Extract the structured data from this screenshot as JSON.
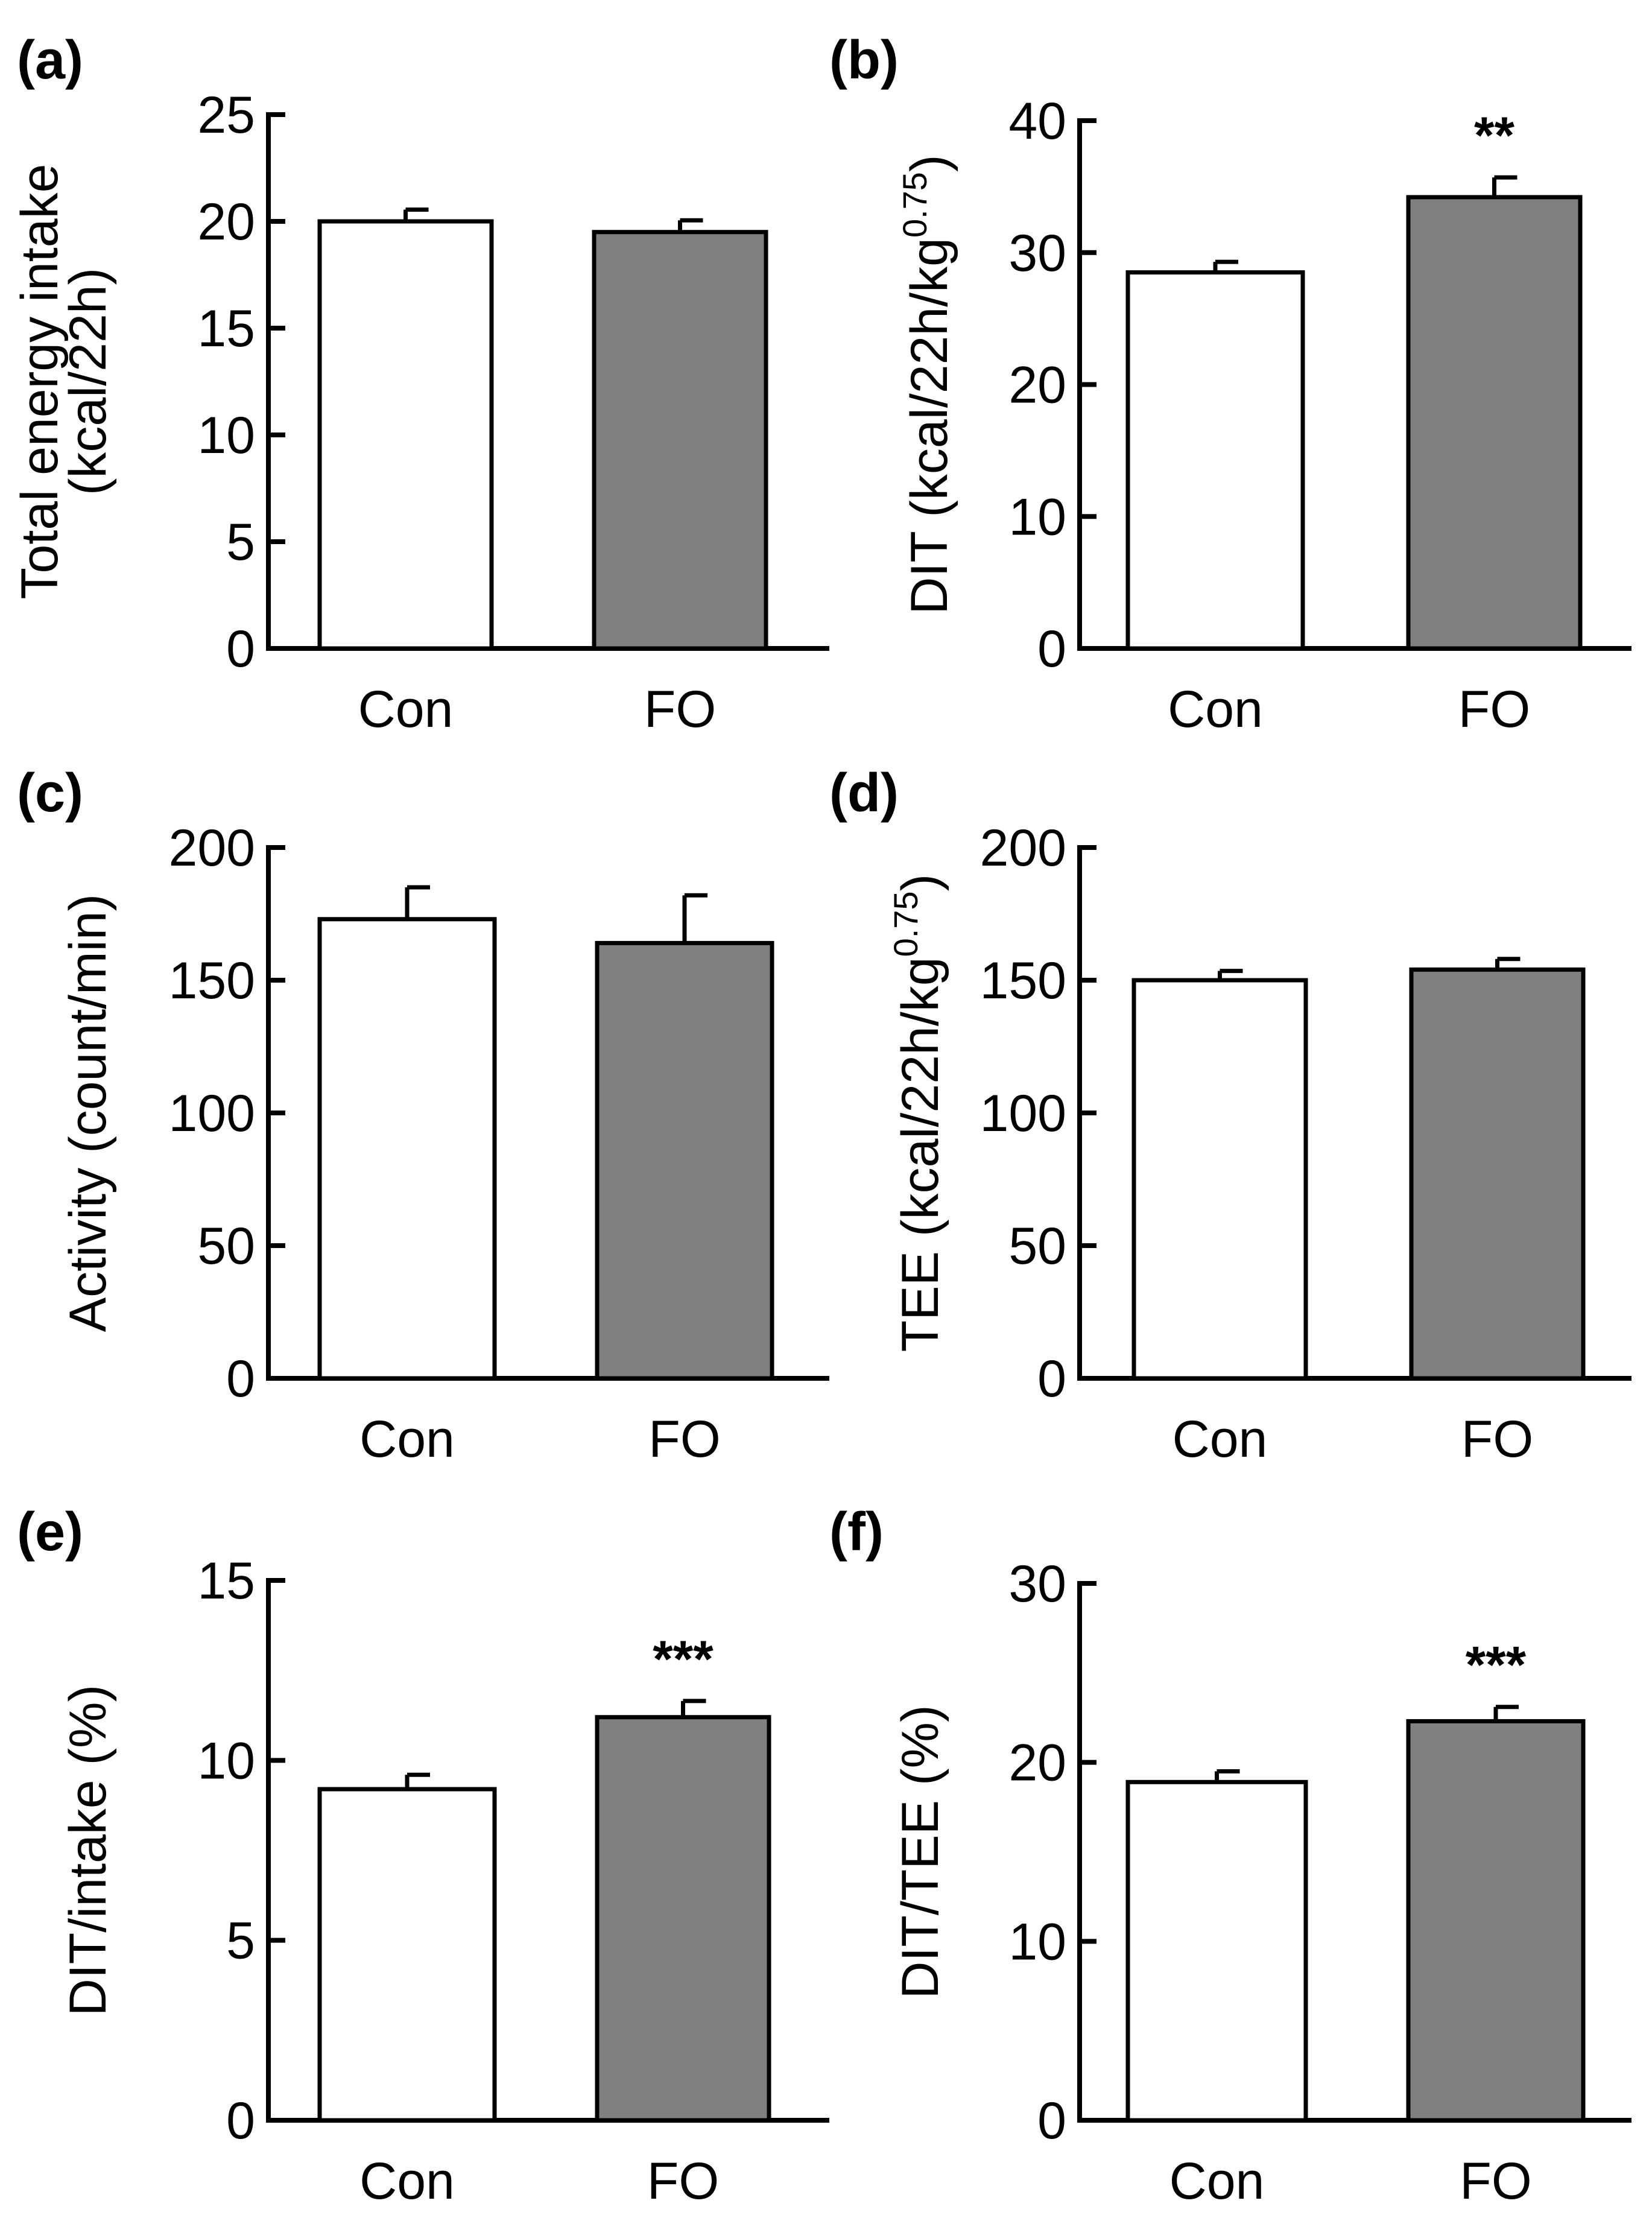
{
  "chart_data": [
    {
      "panel": "(a)",
      "type": "bar",
      "categories": [
        "Con",
        "FO"
      ],
      "values": [
        20.0,
        19.5
      ],
      "errors": [
        0.55,
        0.55
      ],
      "ylim": [
        0,
        25
      ],
      "yticks": [
        0,
        5,
        10,
        15,
        20,
        25
      ],
      "ylabel_lines": [
        "Total energy intake",
        "(kcal/22h)"
      ],
      "ylabel_sup": "",
      "ylabel_tail": "",
      "significance": [
        "",
        ""
      ],
      "colors": [
        "#ffffff",
        "#808080"
      ]
    },
    {
      "panel": "(b)",
      "type": "bar",
      "categories": [
        "Con",
        "FO"
      ],
      "values": [
        28.5,
        34.2
      ],
      "errors": [
        0.8,
        1.5
      ],
      "ylim": [
        0,
        40
      ],
      "yticks": [
        0,
        10,
        20,
        30,
        40
      ],
      "ylabel_lines": [
        "DIT (kcal/22h/kg"
      ],
      "ylabel_sup": "0.75",
      "ylabel_tail": ")",
      "significance": [
        "",
        "**"
      ],
      "colors": [
        "#ffffff",
        "#808080"
      ]
    },
    {
      "panel": "(c)",
      "type": "bar",
      "categories": [
        "Con",
        "FO"
      ],
      "values": [
        173,
        164
      ],
      "errors": [
        12,
        18
      ],
      "ylim": [
        0,
        200
      ],
      "yticks": [
        0,
        50,
        100,
        150,
        200
      ],
      "ylabel_lines": [
        "Activity (count/min)"
      ],
      "ylabel_sup": "",
      "ylabel_tail": "",
      "significance": [
        "",
        ""
      ],
      "colors": [
        "#ffffff",
        "#808080"
      ]
    },
    {
      "panel": "(d)",
      "type": "bar",
      "categories": [
        "Con",
        "FO"
      ],
      "values": [
        150,
        154
      ],
      "errors": [
        3.5,
        4
      ],
      "ylim": [
        0,
        200
      ],
      "yticks": [
        0,
        50,
        100,
        150,
        200
      ],
      "ylabel_lines": [
        "TEE  (kcal/22h/kg"
      ],
      "ylabel_sup": "0.75",
      "ylabel_tail": ")",
      "significance": [
        "",
        ""
      ],
      "colors": [
        "#ffffff",
        "#808080"
      ]
    },
    {
      "panel": "(e)",
      "type": "bar",
      "categories": [
        "Con",
        "FO"
      ],
      "values": [
        9.2,
        11.2
      ],
      "errors": [
        0.4,
        0.45
      ],
      "ylim": [
        0,
        15
      ],
      "yticks": [
        0,
        5,
        10,
        15
      ],
      "ylabel_lines": [
        "DIT/intake (%)"
      ],
      "ylabel_sup": "",
      "ylabel_tail": "",
      "significance": [
        "",
        "***"
      ],
      "colors": [
        "#ffffff",
        "#808080"
      ]
    },
    {
      "panel": "(f)",
      "type": "bar",
      "categories": [
        "Con",
        "FO"
      ],
      "values": [
        18.9,
        22.3
      ],
      "errors": [
        0.6,
        0.8
      ],
      "ylim": [
        0,
        30
      ],
      "yticks": [
        0,
        10,
        20,
        30
      ],
      "ylabel_lines": [
        "DIT/TEE (%)"
      ],
      "ylabel_sup": "",
      "ylabel_tail": "",
      "significance": [
        "",
        "***"
      ],
      "colors": [
        "#ffffff",
        "#808080"
      ]
    }
  ]
}
